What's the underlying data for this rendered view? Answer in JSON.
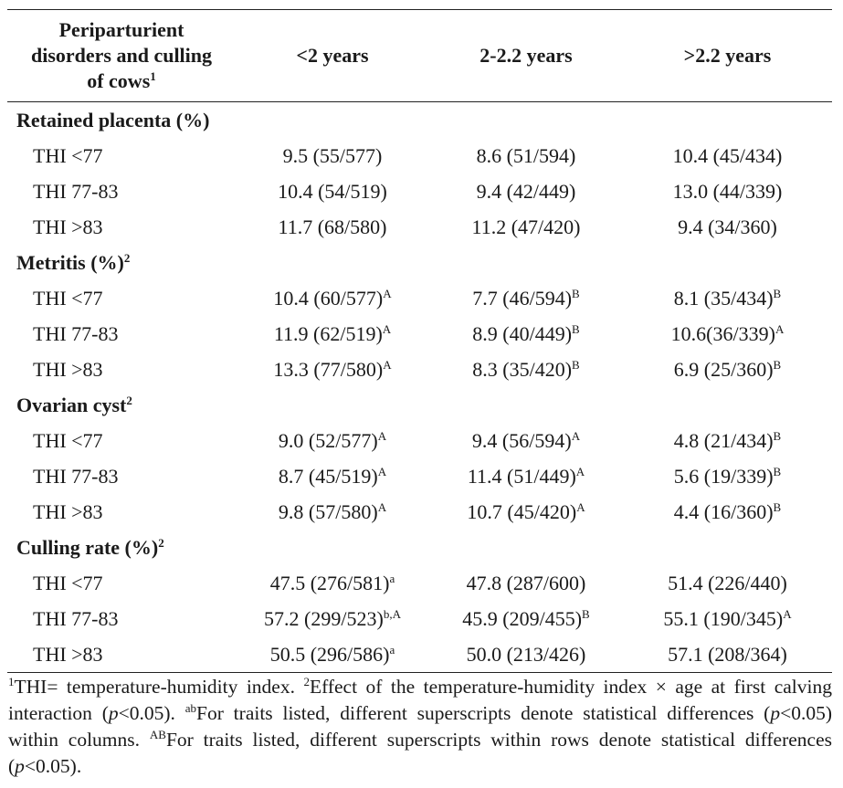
{
  "header": {
    "col0_line1": "Periparturient",
    "col0_line2": "disorders and culling",
    "col0_line3": "of cows",
    "col0_sup": "1",
    "col1": "<2 years",
    "col2": "2-2.2 years",
    "col3": ">2.2 years"
  },
  "sections": [
    {
      "title": "Retained placenta (%)",
      "title_sup": "",
      "rows": [
        {
          "label": "THI <77",
          "cells": [
            {
              "v": "9.5 (55/577)",
              "s": ""
            },
            {
              "v": "8.6 (51/594)",
              "s": ""
            },
            {
              "v": "10.4 (45/434)",
              "s": ""
            }
          ]
        },
        {
          "label": "THI 77-83",
          "cells": [
            {
              "v": "10.4 (54/519)",
              "s": ""
            },
            {
              "v": "9.4 (42/449)",
              "s": ""
            },
            {
              "v": "13.0 (44/339)",
              "s": ""
            }
          ]
        },
        {
          "label": "THI >83",
          "cells": [
            {
              "v": "11.7 (68/580)",
              "s": ""
            },
            {
              "v": "11.2 (47/420)",
              "s": ""
            },
            {
              "v": "9.4 (34/360)",
              "s": ""
            }
          ]
        }
      ]
    },
    {
      "title": "Metritis (%)",
      "title_sup": "2",
      "rows": [
        {
          "label": "THI <77",
          "cells": [
            {
              "v": "10.4 (60/577)",
              "s": "A"
            },
            {
              "v": "7.7 (46/594)",
              "s": "B"
            },
            {
              "v": "8.1 (35/434)",
              "s": "B"
            }
          ]
        },
        {
          "label": "THI 77-83",
          "cells": [
            {
              "v": "11.9 (62/519)",
              "s": "A"
            },
            {
              "v": "8.9 (40/449)",
              "s": "B"
            },
            {
              "v": "10.6(36/339)",
              "s": "A"
            }
          ]
        },
        {
          "label": "THI >83",
          "cells": [
            {
              "v": "13.3 (77/580)",
              "s": "A"
            },
            {
              "v": "8.3 (35/420)",
              "s": "B"
            },
            {
              "v": "6.9 (25/360)",
              "s": "B"
            }
          ]
        }
      ]
    },
    {
      "title": "Ovarian cyst",
      "title_sup": "2",
      "rows": [
        {
          "label": "THI <77",
          "cells": [
            {
              "v": "9.0 (52/577)",
              "s": "A"
            },
            {
              "v": "9.4 (56/594)",
              "s": "A"
            },
            {
              "v": "4.8 (21/434)",
              "s": "B"
            }
          ]
        },
        {
          "label": "THI 77-83",
          "cells": [
            {
              "v": "8.7 (45/519)",
              "s": "A"
            },
            {
              "v": "11.4 (51/449)",
              "s": "A"
            },
            {
              "v": "5.6 (19/339)",
              "s": "B"
            }
          ]
        },
        {
          "label": "THI >83",
          "cells": [
            {
              "v": "9.8 (57/580)",
              "s": "A"
            },
            {
              "v": "10.7 (45/420)",
              "s": "A"
            },
            {
              "v": "4.4 (16/360)",
              "s": "B"
            }
          ]
        }
      ]
    },
    {
      "title": "Culling rate (%)",
      "title_sup": "2",
      "rows": [
        {
          "label": "THI <77",
          "cells": [
            {
              "v": "47.5 (276/581)",
              "s": "a"
            },
            {
              "v": "47.8 (287/600)",
              "s": ""
            },
            {
              "v": "51.4 (226/440)",
              "s": ""
            }
          ]
        },
        {
          "label": "THI 77-83",
          "cells": [
            {
              "v": "57.2 (299/523)",
              "s": "b,A"
            },
            {
              "v": "45.9 (209/455)",
              "s": "B"
            },
            {
              "v": "55.1 (190/345)",
              "s": "A"
            }
          ]
        },
        {
          "label": "THI >83",
          "cells": [
            {
              "v": "50.5 (296/586)",
              "s": "a"
            },
            {
              "v": "50.0 (213/426)",
              "s": ""
            },
            {
              "v": "57.1 (208/364)",
              "s": ""
            }
          ]
        }
      ]
    }
  ],
  "footnote": {
    "s1_sup": "1",
    "s1": "THI= temperature-humidity index. ",
    "s2_sup": "2",
    "s2a": "Effect of the temperature-humidity index × age at first calving interaction (",
    "p": "p",
    "s2b": "<0.05). ",
    "s3_sup": "ab",
    "s3a": "For traits listed, different superscripts denote statistical differences (",
    "s3b": "<0.05) within columns. ",
    "s4_sup": "AB",
    "s4a": "For traits listed, different superscripts within rows denote statistical differences (",
    "s4b": "<0.05)."
  }
}
